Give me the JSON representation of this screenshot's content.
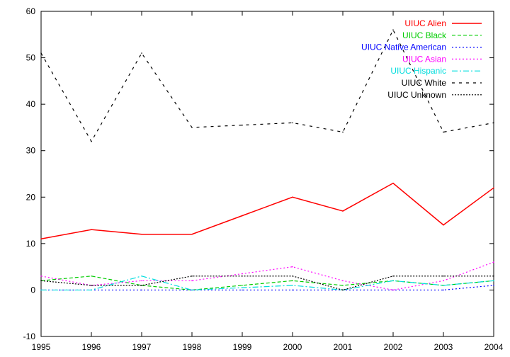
{
  "chart_data": {
    "type": "line",
    "title": "",
    "xlabel": "",
    "ylabel": "",
    "x": [
      1995,
      1996,
      1997,
      1998,
      1999,
      2000,
      2001,
      2002,
      2003,
      2004
    ],
    "xlim": [
      1995,
      2004
    ],
    "ylim": [
      -10,
      60
    ],
    "xticks": [
      "1995",
      "1996",
      "1997",
      "1998",
      "1999",
      "2000",
      "2001",
      "2002",
      "2003",
      "2004"
    ],
    "yticks": [
      "-10",
      "0",
      "10",
      "20",
      "30",
      "40",
      "50",
      "60"
    ],
    "grid": false,
    "legend_position": "top-right",
    "series": [
      {
        "name": "UIUC Alien",
        "color": "#ff0000",
        "dash": "solid",
        "values": [
          11,
          13,
          12,
          12,
          16,
          20,
          17,
          23,
          14,
          22
        ]
      },
      {
        "name": "UIUC Black",
        "color": "#00cc00",
        "dash": "dashed",
        "values": [
          2,
          3,
          1,
          0,
          1,
          2,
          1,
          2,
          1,
          2
        ]
      },
      {
        "name": "UIUC Native American",
        "color": "#0000ff",
        "dash": "dotted",
        "values": [
          0,
          0,
          0,
          0,
          0,
          0,
          0,
          0,
          0,
          1
        ]
      },
      {
        "name": "UIUC Asian",
        "color": "#ff00ff",
        "dash": "dotted",
        "values": [
          3,
          1,
          2,
          2,
          3.5,
          5,
          2,
          0,
          2,
          6
        ]
      },
      {
        "name": "UIUC Hispanic",
        "color": "#00dddd",
        "dash": "dashdot",
        "values": [
          0,
          0,
          3,
          0,
          0.5,
          1,
          0,
          2,
          1,
          2
        ]
      },
      {
        "name": "UIUC White",
        "color": "#000000",
        "dash": "longdash",
        "values": [
          51,
          32,
          51,
          35,
          35.5,
          36,
          34,
          56,
          34,
          36
        ]
      },
      {
        "name": "UIUC Unknown",
        "color": "#000000",
        "dash": "densedot",
        "values": [
          2,
          1,
          1,
          3,
          3,
          3,
          0,
          3,
          3,
          3
        ]
      }
    ]
  }
}
